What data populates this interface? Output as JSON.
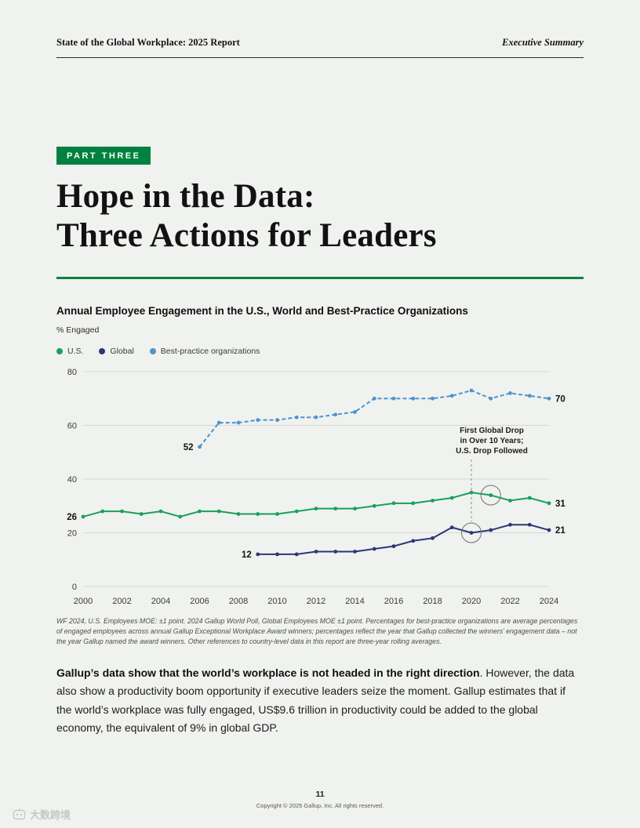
{
  "header": {
    "left": "State of the Global Workplace: 2025 Report",
    "right": "Executive Summary"
  },
  "part_label": "PART THREE",
  "title": {
    "line1": "Hope in the Data:",
    "line2": "Three Actions for Leaders"
  },
  "accent_green": "#00813f",
  "chart_data": {
    "type": "line",
    "title": "Annual Employee Engagement in the U.S., World and Best-Practice Organizations",
    "ylabel": "% Engaged",
    "xlabel": "",
    "xlim": [
      2000,
      2024
    ],
    "ylim": [
      0,
      80
    ],
    "yticks": [
      0,
      20,
      40,
      60,
      80
    ],
    "xticks": [
      2000,
      2002,
      2004,
      2006,
      2008,
      2010,
      2012,
      2014,
      2016,
      2018,
      2020,
      2022,
      2024
    ],
    "grid": "horizontal",
    "legend_position": "top-left",
    "series": [
      {
        "name": "U.S.",
        "color": "#18a05c",
        "dashed": false,
        "start_year": 2000,
        "values": [
          26,
          28,
          28,
          27,
          28,
          26,
          28,
          28,
          27,
          27,
          27,
          28,
          29,
          29,
          29,
          30,
          31,
          31,
          32,
          33,
          35,
          34,
          32,
          33,
          31
        ],
        "start_label": "26",
        "end_label": "31"
      },
      {
        "name": "Global",
        "color": "#2a3779",
        "dashed": false,
        "start_year": 2009,
        "values": [
          12,
          12,
          12,
          13,
          13,
          13,
          14,
          15,
          17,
          18,
          22,
          20,
          21,
          23,
          23,
          21
        ],
        "start_label": "12",
        "end_label": "21"
      },
      {
        "name": "Best-practice organizations",
        "color": "#4e93cf",
        "dashed": true,
        "start_year": 2006,
        "values": [
          52,
          61,
          61,
          62,
          62,
          63,
          63,
          64,
          65,
          70,
          70,
          70,
          70,
          71,
          73,
          70,
          72,
          71,
          70
        ],
        "start_label": "52",
        "end_label": "70"
      }
    ],
    "annotation": {
      "lines": [
        "First Global Drop",
        "in Over 10 Years;",
        "U.S. Drop Followed"
      ],
      "circled": [
        {
          "series": "Global",
          "year": 2020
        },
        {
          "series": "U.S.",
          "year": 2021
        }
      ],
      "pointer": {
        "series": "Global",
        "year": 2020
      }
    }
  },
  "footnote": "WF 2024, U.S. Employees MOE: ±1 point. 2024 Gallup World Poll, Global Employees MOE ±1 point. Percentages for best-practice organizations are average percentages of engaged employees across annual Gallup Exceptional Workplace Award winners; percentages reflect the year that Gallup collected the winners’ engagement data – not the year Gallup named the award winners. Other references to country-level data in this report are three-year rolling averages.",
  "body": {
    "bold": "Gallup’s data show that the world’s workplace is not headed in the right direction",
    "rest": ". However, the data also show a productivity boom opportunity if executive leaders seize the moment. Gallup estimates that if the world’s workplace was fully engaged, US$9.6 trillion in productivity could be added to the global economy, the equivalent of 9% in global GDP."
  },
  "footer": {
    "page_number": "11",
    "copyright": "Copyright © 2025 Gallup, Inc. All rights reserved."
  },
  "watermark": "大数跨境"
}
